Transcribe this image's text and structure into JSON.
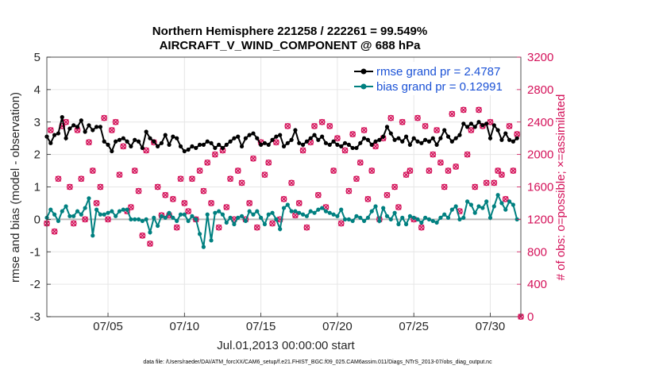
{
  "chart_data": {
    "type": "line",
    "title": "Northern Hemisphere 221258 / 222261 = 99.549%",
    "subtitle": "AIRCRAFT_V_WIND_COMPONENT @ 688 hPa",
    "xlabel": "Jul.01,2013 00:00:00 start",
    "ylabel_left": "rmse and bias (model - observation)",
    "ylabel_right": "# of obs: o=possible; ×=assimilated",
    "ylim_left": [
      -3,
      5
    ],
    "ylim_right": [
      0,
      3200
    ],
    "xlim": [
      1,
      32
    ],
    "x_ticks": [
      {
        "value": 5,
        "label": "07/05"
      },
      {
        "value": 10,
        "label": "07/10"
      },
      {
        "value": 15,
        "label": "07/15"
      },
      {
        "value": 20,
        "label": "07/20"
      },
      {
        "value": 25,
        "label": "07/25"
      },
      {
        "value": 30,
        "label": "07/30"
      }
    ],
    "y_ticks_left": [
      "-3",
      "-2",
      "-1",
      "0",
      "1",
      "2",
      "3",
      "4",
      "5"
    ],
    "y_ticks_right": [
      "0",
      "400",
      "800",
      "1200",
      "1600",
      "2000",
      "2400",
      "2800",
      "3200"
    ],
    "legend": [
      {
        "label": "rmse grand pr = 2.4787",
        "color": "#000000"
      },
      {
        "label": "bias grand pr = 0.12991",
        "color": "#008080"
      }
    ],
    "source_note": "data file: /Users/raeder/DAI/ATM_forcXX/CAM6_setup/f.e21.FHIST_BGC.f09_025.CAM6assim.011/Diags_NTrS_2013-07/obs_diag_output.nc",
    "x_values": [
      1.0,
      1.25,
      1.5,
      1.75,
      2.0,
      2.25,
      2.5,
      2.75,
      3.0,
      3.25,
      3.5,
      3.75,
      4.0,
      4.25,
      4.5,
      4.75,
      5.0,
      5.25,
      5.5,
      5.75,
      6.0,
      6.25,
      6.5,
      6.75,
      7.0,
      7.25,
      7.5,
      7.75,
      8.0,
      8.25,
      8.5,
      8.75,
      9.0,
      9.25,
      9.5,
      9.75,
      10.0,
      10.25,
      10.5,
      10.75,
      11.0,
      11.25,
      11.5,
      11.75,
      12.0,
      12.25,
      12.5,
      12.75,
      13.0,
      13.25,
      13.5,
      13.75,
      14.0,
      14.25,
      14.5,
      14.75,
      15.0,
      15.25,
      15.5,
      15.75,
      16.0,
      16.25,
      16.5,
      16.75,
      17.0,
      17.25,
      17.5,
      17.75,
      18.0,
      18.25,
      18.5,
      18.75,
      19.0,
      19.25,
      19.5,
      19.75,
      20.0,
      20.25,
      20.5,
      20.75,
      21.0,
      21.25,
      21.5,
      21.75,
      22.0,
      22.25,
      22.5,
      22.75,
      23.0,
      23.25,
      23.5,
      23.75,
      24.0,
      24.25,
      24.5,
      24.75,
      25.0,
      25.25,
      25.5,
      25.75,
      26.0,
      26.25,
      26.5,
      26.75,
      27.0,
      27.25,
      27.5,
      27.75,
      28.0,
      28.25,
      28.5,
      28.75,
      29.0,
      29.25,
      29.5,
      29.75,
      30.0,
      30.25,
      30.5,
      30.75,
      31.0,
      31.25,
      31.5,
      31.75
    ],
    "series": [
      {
        "name": "rmse",
        "color": "#000000",
        "values": [
          2.55,
          2.35,
          2.6,
          2.65,
          3.15,
          2.5,
          2.8,
          2.9,
          2.85,
          3.05,
          2.7,
          2.9,
          2.75,
          2.85,
          2.85,
          2.4,
          2.3,
          2.1,
          2.4,
          2.45,
          2.5,
          2.4,
          2.25,
          2.45,
          2.4,
          2.2,
          2.7,
          2.5,
          2.4,
          2.25,
          2.35,
          2.6,
          2.3,
          2.55,
          2.5,
          2.25,
          2.1,
          2.15,
          2.25,
          2.2,
          2.3,
          2.3,
          2.4,
          2.35,
          2.2,
          2.3,
          2.2,
          2.3,
          2.4,
          2.5,
          2.55,
          2.25,
          2.5,
          2.6,
          2.65,
          2.5,
          2.3,
          2.35,
          2.3,
          2.45,
          2.55,
          2.6,
          2.25,
          2.35,
          2.45,
          2.75,
          2.35,
          2.3,
          2.4,
          2.5,
          2.6,
          2.45,
          2.55,
          2.35,
          2.3,
          2.4,
          2.3,
          2.25,
          2.35,
          2.3,
          2.2,
          2.2,
          2.35,
          2.5,
          2.45,
          2.3,
          2.4,
          2.45,
          2.55,
          2.85,
          2.65,
          2.45,
          2.5,
          2.4,
          2.55,
          2.3,
          2.5,
          2.4,
          2.35,
          2.45,
          2.4,
          2.5,
          2.3,
          2.5,
          2.75,
          2.55,
          2.4,
          2.5,
          2.6,
          2.95,
          2.85,
          2.95,
          2.85,
          3.0,
          2.9,
          2.95,
          2.5,
          2.9,
          2.75,
          2.45,
          2.65,
          2.45,
          2.4,
          2.5
        ]
      },
      {
        "name": "bias",
        "color": "#008080",
        "values": [
          0.05,
          0.3,
          0.15,
          -0.05,
          0.25,
          0.4,
          0.1,
          0.1,
          0.25,
          0.15,
          0.35,
          0.65,
          -0.5,
          0.3,
          0.15,
          0.15,
          0.2,
          0.25,
          0.1,
          0.25,
          0.3,
          0.3,
          0.0,
          0.0,
          0.0,
          -0.05,
          0.0,
          -0.4,
          0.05,
          -0.2,
          0.1,
          0.05,
          0.2,
          0.05,
          -0.05,
          0.15,
          0.15,
          -0.05,
          0.1,
          0.0,
          -0.45,
          -0.85,
          0.15,
          -0.65,
          0.2,
          0.25,
          0.15,
          -0.1,
          0.05,
          -0.15,
          0.05,
          0.1,
          -0.05,
          0.25,
          0.15,
          0.25,
          0.05,
          -0.15,
          0.15,
          0.2,
          0.0,
          -0.3,
          0.35,
          0.45,
          0.25,
          0.25,
          0.2,
          0.15,
          0.1,
          0.25,
          0.2,
          0.3,
          0.35,
          0.25,
          0.2,
          0.15,
          0.1,
          0.3,
          0.0,
          0.0,
          -0.05,
          0.1,
          0.05,
          -0.05,
          0.05,
          0.25,
          0.4,
          -0.05,
          0.35,
          0.1,
          0.0,
          0.2,
          -0.15,
          0.05,
          -0.15,
          0.1,
          0.05,
          0.0,
          -0.1,
          0.05,
          0.0,
          -0.05,
          -0.1,
          0.05,
          0.15,
          0.05,
          0.3,
          0.4,
          0.0,
          0.05,
          0.55,
          0.45,
          0.2,
          0.4,
          0.35,
          0.55,
          0.05,
          0.4,
          0.75,
          0.5,
          0.3,
          0.55,
          0.45,
          0.0
        ]
      }
    ],
    "obs_possible": [
      1150,
      2300,
      1050,
      1700,
      2350,
      2400,
      1600,
      1150,
      2300,
      1700,
      1200,
      2150,
      1800,
      1400,
      1600,
      2450,
      1200,
      2300,
      2400,
      1750,
      2100,
      1300,
      1350,
      1800,
      1550,
      1000,
      2050,
      900,
      2150,
      1600,
      1250,
      1500,
      1250,
      1450,
      1100,
      1700,
      1400,
      1300,
      1700,
      1200,
      1800,
      1550,
      1900,
      1400,
      2000,
      1100,
      2050,
      1350,
      1700,
      1200,
      1800,
      1650,
      1200,
      1400,
      1950,
      1100,
      2150,
      1750,
      1900,
      1150,
      2150,
      1200,
      1450,
      2350,
      1650,
      1250,
      1400,
      2050,
      1100,
      2150,
      2350,
      1500,
      2400,
      1350,
      2350,
      1800,
      2200,
      1150,
      2050,
      1550,
      2250,
      1700,
      1900,
      2300,
      1450,
      1800,
      2100,
      1200,
      2200,
      1500,
      2450,
      1600,
      1350,
      2400,
      1750,
      1800,
      1200,
      2450,
      1100,
      2350,
      1800,
      2000,
      2300,
      1900,
      1600,
      1800,
      2500,
      1850,
      1300,
      2550,
      2000,
      2300,
      1600,
      2550,
      2350,
      1650,
      2400,
      1650,
      1800,
      1750,
      1450,
      2350,
      1800,
      2250
    ]
  }
}
